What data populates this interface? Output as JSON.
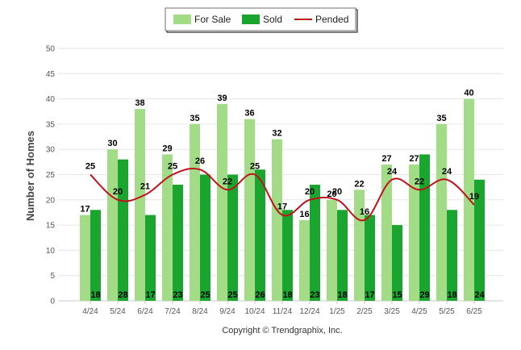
{
  "chart_data": {
    "type": "bar",
    "categories": [
      "4/24",
      "5/24",
      "6/24",
      "7/24",
      "8/24",
      "9/24",
      "10/24",
      "11/24",
      "12/24",
      "1/25",
      "2/25",
      "3/25",
      "4/25",
      "5/25",
      "6/25"
    ],
    "series": [
      {
        "name": "For Sale",
        "type": "bar",
        "color": "#a3dc87",
        "values": [
          17,
          30,
          38,
          29,
          35,
          39,
          36,
          32,
          16,
          20,
          22,
          27,
          27,
          35,
          40
        ]
      },
      {
        "name": "Sold",
        "type": "bar",
        "color": "#1aa52f",
        "values": [
          18,
          28,
          17,
          23,
          25,
          25,
          26,
          18,
          23,
          18,
          17,
          15,
          29,
          18,
          24
        ]
      },
      {
        "name": "Pended",
        "type": "line",
        "color": "#c0121a",
        "values": [
          25,
          20,
          21,
          25,
          26,
          22,
          25,
          17,
          20,
          20,
          16,
          24,
          22,
          24,
          19
        ]
      }
    ],
    "ylabel": "Number of Homes",
    "xlabel": "",
    "ylim": [
      0,
      50
    ],
    "yticks": [
      0,
      5,
      10,
      15,
      20,
      25,
      30,
      35,
      40,
      45,
      50
    ],
    "grid": true,
    "legend_position": "top-center"
  },
  "footer": {
    "copyright": "Copyright © Trendgraphix, Inc."
  }
}
